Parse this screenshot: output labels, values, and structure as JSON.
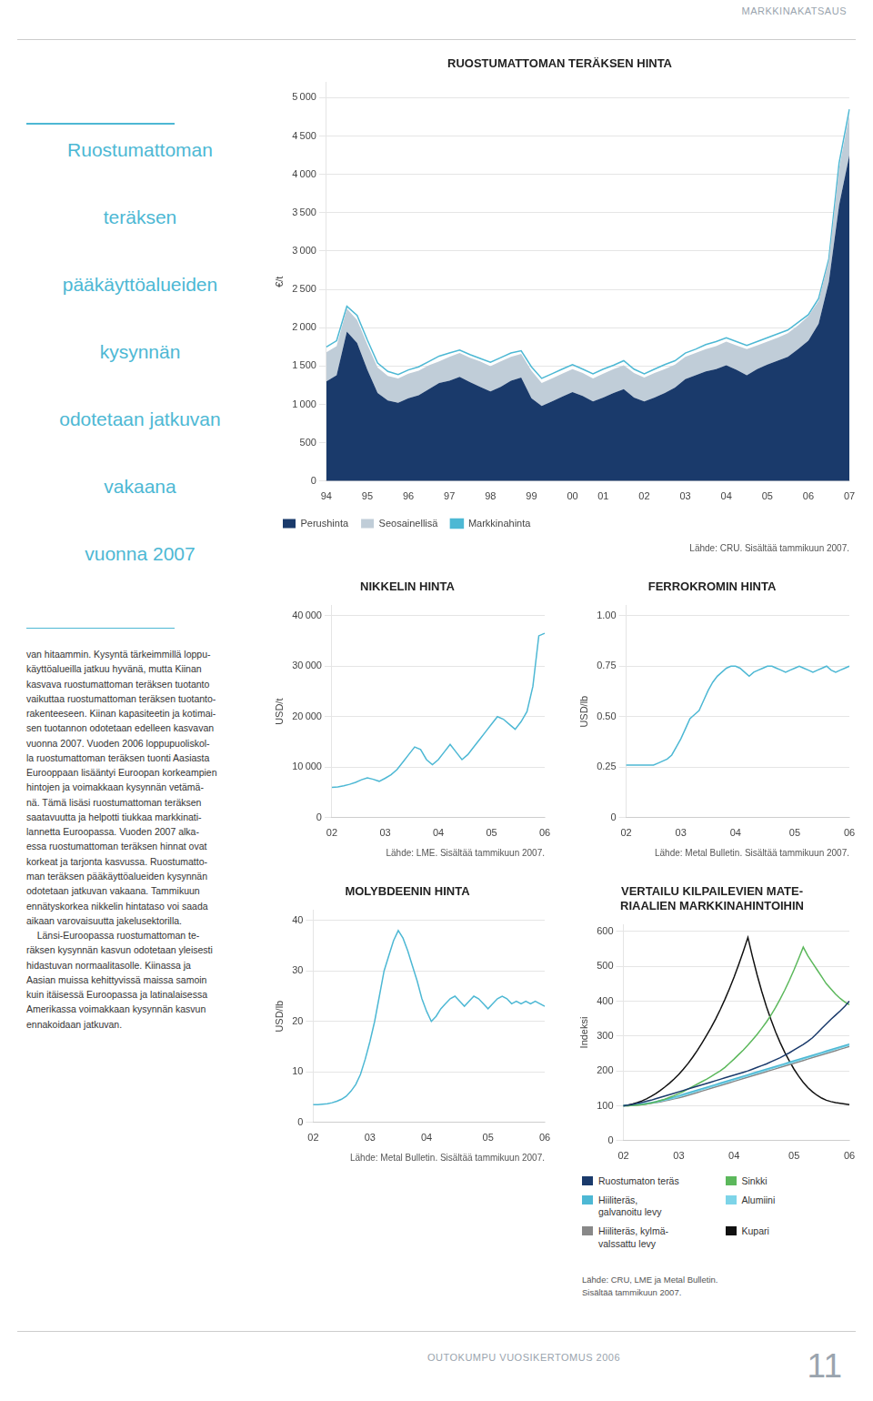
{
  "annotations": [
    "MARKKINAKATSAUS",
    "Ruostumattoman\nteräksen\npääkäyttöalueiden\nkysynnän\nodotetaan jatkuvan\nvakaana\nvuonna 2007",
    "van hitaammin. Kysyntä tärkeimmillä loppu-\nkäyttöalueilla jatkuu hyvänä, mutta Kiinan\nkasvava ruostumattoman teräksen tuotanto\nvaikuttaa ruostumattoman teräksen tuotanto-\nrakenteeseen. Kiinan kapasiteetin ja kotimai-\nsen tuotannon odotetaan edelleen kasvavan\nvuonna 2007. Vuoden 2006 loppupuoliskol-\nla ruostumattoman teräksen tuonti Aasiasta\nEurooppaan lisääntyi Euroopan korkeampien\nhintojen ja voimakkaan kysynnän vetämä-\nnä. Tämä lisäsi ruostumattoman teräksen\nsaatavuutta ja helpotti tiukkaa markkinati-\nlannetta Euroopassa. Vuoden 2007 alka-\nessa ruostumattoman teräksen hinnat ovat\nkorkeat ja tarjonta kasvussa. Ruostumatto-\nman teräksen pääkäyttöalueiden kysynnän\nodotetaan jatkuvan vakaana. Tammikuun\nennätyskorkea nikkelin hintataso voi saada\naikaan varovaisuutta jakelusektorilla.\n    Länsi-Euroopassa ruostumattoman te-\nräksen kysynnän kasvun odotetaan yleisesti\nhidastuvan normaalitasolle. Kiinassa ja\nAasian muissa kehittyvissä maissa samoin\nkuin itäisessä Euroopassa ja latinalaisessa\nAmerikassa voimakkaan kysynnän kasvun\nennakoidaan jatkuvan.",
    "OUTOKUMPU VUOSIKERTOMUS 2006",
    "11"
  ],
  "chart_data": [
    {
      "type": "line",
      "title": "RUOSTUMATTOMAN TERÄKSEN HINTA",
      "ylabel": "€/t",
      "annotations": [
        "Lähde: CRU. Sisältää tammikuun 2007."
      ],
      "categories": [
        "94",
        null,
        null,
        null,
        "95",
        null,
        null,
        null,
        "96",
        null,
        null,
        null,
        "97",
        null,
        null,
        null,
        "98",
        null,
        null,
        null,
        "99",
        null,
        null,
        null,
        "00",
        null,
        null,
        "01",
        null,
        null,
        null,
        "02",
        null,
        null,
        null,
        "03",
        null,
        null,
        null,
        "04",
        null,
        null,
        null,
        "05",
        null,
        null,
        null,
        "06",
        null,
        null,
        null,
        "07"
      ],
      "series": [
        {
          "name": "Perushinta",
          "type": "area",
          "color": "#1a3a6b",
          "values": [
            1300,
            1380,
            1950,
            1800,
            1450,
            1150,
            1050,
            1020,
            1080,
            1120,
            1200,
            1280,
            1310,
            1360,
            1290,
            1230,
            1170,
            1230,
            1310,
            1350,
            1080,
            980,
            1040,
            1100,
            1160,
            1110,
            1040,
            1090,
            1150,
            1200,
            1090,
            1040,
            1090,
            1150,
            1220,
            1330,
            1380,
            1430,
            1460,
            1510,
            1450,
            1380,
            1460,
            1520,
            1570,
            1620,
            1720,
            1830,
            2050,
            2600,
            3600,
            4250
          ]
        },
        {
          "name": "Seosainellisä",
          "type": "area",
          "color": "#c0cdd8",
          "values": [
            380,
            380,
            300,
            300,
            330,
            330,
            320,
            320,
            320,
            320,
            310,
            280,
            310,
            310,
            320,
            330,
            330,
            330,
            310,
            310,
            360,
            300,
            300,
            300,
            300,
            300,
            300,
            310,
            310,
            310,
            320,
            310,
            320,
            310,
            300,
            290,
            290,
            290,
            300,
            310,
            320,
            340,
            310,
            300,
            300,
            310,
            310,
            320,
            300,
            280,
            480,
            530
          ]
        },
        {
          "name": "Markkinahinta",
          "type": "line",
          "color": "#4db8d4",
          "values": [
            1750,
            1830,
            2280,
            2160,
            1840,
            1540,
            1430,
            1390,
            1450,
            1490,
            1560,
            1630,
            1670,
            1710,
            1650,
            1600,
            1550,
            1610,
            1670,
            1700,
            1490,
            1340,
            1400,
            1460,
            1520,
            1460,
            1400,
            1460,
            1510,
            1570,
            1460,
            1400,
            1460,
            1520,
            1570,
            1670,
            1720,
            1780,
            1820,
            1870,
            1820,
            1770,
            1820,
            1870,
            1920,
            1970,
            2070,
            2170,
            2380,
            2900,
            4150,
            4850
          ]
        }
      ],
      "stacked": true,
      "legend": "bottom",
      "ylim": [
        0,
        5200
      ],
      "yticks": [
        0,
        500,
        {
          "value": 1000,
          "label": "1 000"
        },
        {
          "value": 1500,
          "label": "1 500"
        },
        {
          "value": 2000,
          "label": "2 000"
        },
        {
          "value": 2500,
          "label": "2 500"
        },
        {
          "value": 3000,
          "label": "3 000"
        },
        {
          "value": 3500,
          "label": "3 500"
        },
        {
          "value": 4000,
          "label": "4 000"
        },
        {
          "value": 4500,
          "label": "4 500"
        },
        {
          "value": 5000,
          "label": "5 000"
        }
      ],
      "grid": true
    },
    {
      "type": "line",
      "title": "NIKKELIN HINTA",
      "ylabel": "USD/t",
      "annotations": [
        "Lähde: LME. Sisältää tammikuun 2007."
      ],
      "categories": [
        "02",
        null,
        null,
        null,
        null,
        null,
        null,
        null,
        null,
        "03",
        null,
        null,
        null,
        null,
        null,
        null,
        null,
        null,
        "04",
        null,
        null,
        null,
        null,
        null,
        null,
        null,
        null,
        "05",
        null,
        null,
        null,
        null,
        null,
        null,
        null,
        null,
        "06"
      ],
      "values": [
        6000,
        6100,
        6300,
        6600,
        7000,
        7500,
        7900,
        7600,
        7200,
        7800,
        8500,
        9500,
        11000,
        12500,
        14000,
        13500,
        11500,
        10500,
        11500,
        13000,
        14500,
        13000,
        11500,
        12500,
        14000,
        15500,
        17000,
        18500,
        20000,
        19500,
        18500,
        17500,
        19000,
        21000,
        26000,
        36000,
        36500
      ],
      "color": "#4db8d4",
      "ylim": [
        0,
        42000
      ],
      "yticks": [
        0,
        {
          "value": 10000,
          "label": "10 000"
        },
        {
          "value": 20000,
          "label": "20 000"
        },
        {
          "value": 30000,
          "label": "30 000"
        },
        {
          "value": 40000,
          "label": "40 000"
        }
      ],
      "grid": true
    },
    {
      "type": "line",
      "title": "FERROKROMIN HINTA",
      "ylabel": "USD/lb",
      "annotations": [
        "Lähde: Metal Bulletin. Sisältää tammikuun 2007."
      ],
      "categories": [
        "02",
        null,
        null,
        null,
        null,
        null,
        null,
        null,
        null,
        null,
        null,
        null,
        "03",
        null,
        null,
        null,
        null,
        null,
        null,
        null,
        null,
        null,
        null,
        null,
        "04",
        null,
        null,
        null,
        null,
        null,
        null,
        null,
        null,
        null,
        null,
        null,
        null,
        "05",
        null,
        null,
        null,
        null,
        null,
        null,
        null,
        null,
        null,
        null,
        null,
        "06"
      ],
      "values": [
        0.26,
        0.26,
        0.26,
        0.26,
        0.26,
        0.26,
        0.26,
        0.27,
        0.28,
        0.29,
        0.31,
        0.35,
        0.39,
        0.44,
        0.49,
        0.51,
        0.53,
        0.58,
        0.63,
        0.67,
        0.7,
        0.72,
        0.74,
        0.75,
        0.75,
        0.74,
        0.72,
        0.7,
        0.72,
        0.73,
        0.74,
        0.75,
        0.75,
        0.74,
        0.73,
        0.72,
        0.73,
        0.74,
        0.75,
        0.74,
        0.73,
        0.72,
        0.73,
        0.74,
        0.75,
        0.73,
        0.72,
        0.73,
        0.74,
        0.75
      ],
      "color": "#4db8d4",
      "ylim": [
        0,
        1.05
      ],
      "yticks": [
        0,
        0.25,
        {
          "value": 0.5,
          "label": "0.50"
        },
        0.75,
        {
          "value": 1,
          "label": "1.00"
        }
      ],
      "grid": true
    },
    {
      "type": "line",
      "title": "MOLYBDEENIN HINTA",
      "ylabel": "USD/lb",
      "annotations": [
        "Lähde: Metal Bulletin. Sisältää tammikuun 2007."
      ],
      "categories": [
        "02",
        null,
        null,
        null,
        null,
        null,
        null,
        null,
        null,
        null,
        null,
        null,
        "03",
        null,
        null,
        null,
        null,
        null,
        null,
        null,
        null,
        null,
        null,
        null,
        "04",
        null,
        null,
        null,
        null,
        null,
        null,
        null,
        null,
        null,
        null,
        null,
        null,
        "05",
        null,
        null,
        null,
        null,
        null,
        null,
        null,
        null,
        null,
        null,
        null,
        "06"
      ],
      "values": [
        3.5,
        3.5,
        3.6,
        3.7,
        3.9,
        4.2,
        4.6,
        5.2,
        6.2,
        7.5,
        9.5,
        12.5,
        16.0,
        20.0,
        25.0,
        30.0,
        33.0,
        36.0,
        38.0,
        36.5,
        34.0,
        31.0,
        28.0,
        24.5,
        22.0,
        20.0,
        21.0,
        22.5,
        23.5,
        24.5,
        25.0,
        24.0,
        23.0,
        24.0,
        25.0,
        24.5,
        23.5,
        22.5,
        23.5,
        24.5,
        25.0,
        24.5,
        23.5,
        24.0,
        23.5,
        24.0,
        23.5,
        24.0,
        23.5,
        23.0
      ],
      "color": "#4db8d4",
      "ylim": [
        0,
        42
      ],
      "yticks": [
        0,
        10,
        20,
        30,
        40
      ],
      "grid": true
    },
    {
      "type": "line",
      "title": "VERTAILU KILPAILEVIEN MATE-\nRIAALIEN MARKKINAHINTOIHIN",
      "ylabel": "Indeksi",
      "annotations": [
        "Lähde: CRU, LME ja Metal Bulletin.",
        "Sisältää tammikuun 2007."
      ],
      "categories": [
        "02",
        null,
        null,
        null,
        null,
        null,
        null,
        null,
        null,
        null,
        null,
        null,
        "03",
        null,
        null,
        null,
        null,
        null,
        null,
        null,
        null,
        null,
        null,
        null,
        "04",
        null,
        null,
        null,
        null,
        null,
        null,
        null,
        null,
        null,
        null,
        null,
        null,
        "05",
        null,
        null,
        null,
        null,
        null,
        null,
        null,
        null,
        null,
        null,
        null,
        "06"
      ],
      "series": [
        {
          "name": "Ruostumaton teräs",
          "color": "#1a3a6b",
          "values": [
            100,
            102,
            104,
            107,
            110,
            113,
            116,
            120,
            124,
            128,
            132,
            136,
            140,
            144,
            148,
            152,
            156,
            160,
            164,
            168,
            172,
            176,
            180,
            184,
            188,
            192,
            196,
            200,
            205,
            210,
            215,
            220,
            226,
            232,
            238,
            245,
            252,
            260,
            268,
            276,
            285,
            295,
            308,
            322,
            335,
            348,
            360,
            372,
            385,
            400
          ]
        },
        {
          "name": "Sinkki",
          "color": "#5cb85c",
          "values": [
            100,
            100,
            101,
            102,
            103,
            105,
            108,
            111,
            115,
            119,
            124,
            129,
            135,
            141,
            148,
            155,
            162,
            169,
            176,
            184,
            192,
            200,
            210,
            222,
            234,
            247,
            260,
            274,
            289,
            305,
            322,
            340,
            360,
            382,
            406,
            432,
            460,
            490,
            522,
            555,
            530,
            510,
            490,
            470,
            450,
            435,
            420,
            408,
            398,
            390
          ]
        },
        {
          "name": "Hiiliteräs,\ngalvanoitu levy",
          "color": "#4db8d4",
          "values": [
            100,
            101,
            102,
            103,
            105,
            107,
            109,
            112,
            115,
            118,
            121,
            125,
            129,
            133,
            137,
            141,
            145,
            149,
            153,
            157,
            161,
            165,
            169,
            173,
            177,
            181,
            185,
            189,
            193,
            197,
            201,
            205,
            209,
            213,
            217,
            221,
            225,
            229,
            233,
            237,
            241,
            245,
            249,
            253,
            257,
            261,
            265,
            269,
            273,
            277
          ]
        },
        {
          "name": "Alumiini",
          "color": "#7dd4e8",
          "values": [
            100,
            101,
            102,
            103,
            104,
            106,
            108,
            110,
            113,
            116,
            119,
            122,
            126,
            130,
            134,
            138,
            142,
            146,
            150,
            154,
            158,
            162,
            166,
            170,
            174,
            178,
            182,
            186,
            190,
            194,
            198,
            202,
            206,
            210,
            214,
            218,
            222,
            226,
            230,
            234,
            238,
            242,
            246,
            250,
            254,
            258,
            262,
            266,
            270,
            274
          ]
        },
        {
          "name": "Hiiliteräs, kylmä-\nvalssattu levy",
          "color": "#888888",
          "values": [
            100,
            100,
            101,
            102,
            103,
            105,
            107,
            109,
            111,
            114,
            117,
            120,
            123,
            126,
            130,
            134,
            138,
            142,
            146,
            150,
            154,
            158,
            162,
            166,
            170,
            174,
            178,
            182,
            186,
            190,
            194,
            198,
            202,
            206,
            210,
            214,
            218,
            222,
            226,
            230,
            234,
            238,
            242,
            246,
            250,
            254,
            258,
            262,
            266,
            270
          ]
        },
        {
          "name": "Kupari",
          "color": "#111111",
          "values": [
            100,
            102,
            105,
            109,
            114,
            120,
            127,
            135,
            144,
            154,
            165,
            177,
            190,
            205,
            221,
            239,
            258,
            279,
            301,
            324,
            349,
            376,
            405,
            436,
            469,
            505,
            543,
            583,
            527,
            475,
            428,
            385,
            347,
            312,
            281,
            253,
            228,
            205,
            185,
            167,
            152,
            140,
            130,
            122,
            116,
            112,
            109,
            107,
            105,
            103
          ]
        }
      ],
      "legend": "bottom",
      "ylim": [
        0,
        620
      ],
      "yticks": [
        0,
        100,
        200,
        300,
        400,
        500,
        600
      ],
      "grid": true
    }
  ]
}
